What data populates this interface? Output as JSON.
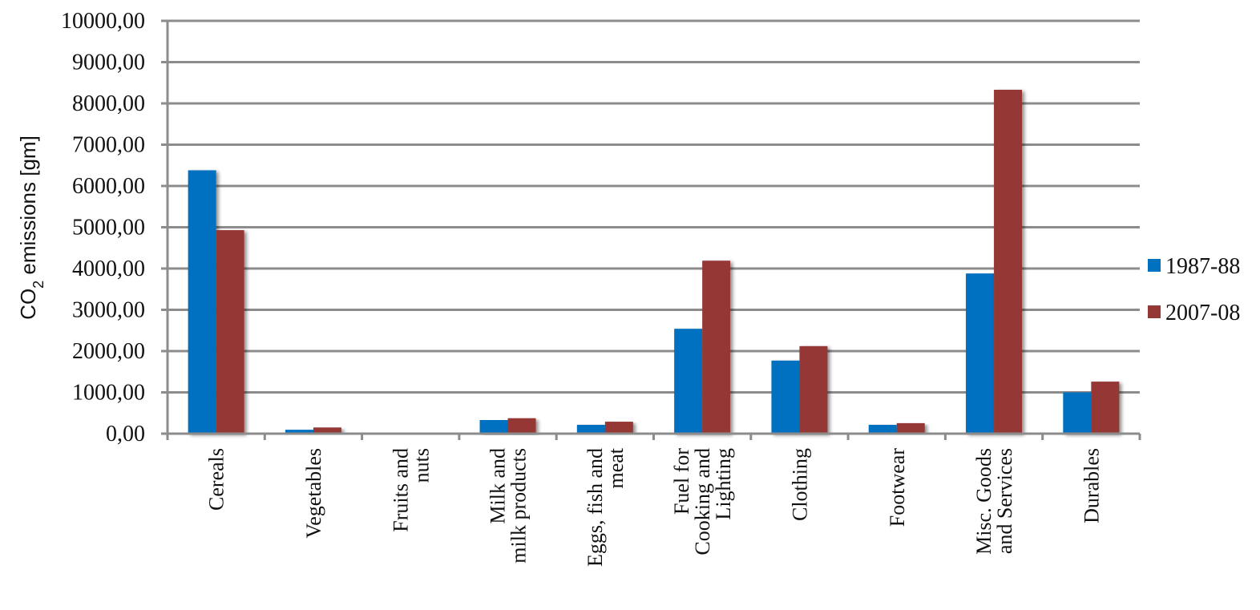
{
  "chart_data": {
    "type": "bar",
    "title": "",
    "xlabel": "",
    "ylabel": {
      "prefix": "CO",
      "subscript": "2",
      "suffix": " emissions [gm]"
    },
    "ylim": [
      0,
      10000
    ],
    "yticks": [
      0,
      1000,
      2000,
      3000,
      4000,
      5000,
      6000,
      7000,
      8000,
      9000,
      10000
    ],
    "ytick_labels": [
      "0,00",
      "1000,00",
      "2000,00",
      "3000,00",
      "4000,00",
      "5000,00",
      "6000,00",
      "7000,00",
      "8000,00",
      "9000,00",
      "10000,00"
    ],
    "grid": true,
    "legend_position": "right",
    "categories": [
      "Cereals",
      "Vegetables",
      "Fruits and nuts",
      "Milk and milk products",
      "Eggs, fish and meat",
      "Fuel for Cooking and Lighting",
      "Clothing",
      "Footwear",
      "Misc. Goods and Services",
      "Durables"
    ],
    "category_label_lines": [
      [
        "Cereals"
      ],
      [
        "Vegetables"
      ],
      [
        "Fruits and",
        "nuts"
      ],
      [
        "Milk and",
        "milk products"
      ],
      [
        "Eggs, fish and",
        "meat"
      ],
      [
        "Fuel for",
        "Cooking and",
        "Lighting"
      ],
      [
        "Clothing"
      ],
      [
        "Footwear"
      ],
      [
        "Misc. Goods",
        "and Services"
      ],
      [
        "Durables"
      ]
    ],
    "series": [
      {
        "name": "1987-88",
        "color": "#0070C0",
        "values": [
          6380,
          95,
          8,
          330,
          215,
          2540,
          1770,
          215,
          3880,
          1000
        ]
      },
      {
        "name": "2007-08",
        "color": "#953735",
        "values": [
          4930,
          150,
          25,
          375,
          290,
          4190,
          2120,
          255,
          8330,
          1260
        ]
      }
    ]
  }
}
